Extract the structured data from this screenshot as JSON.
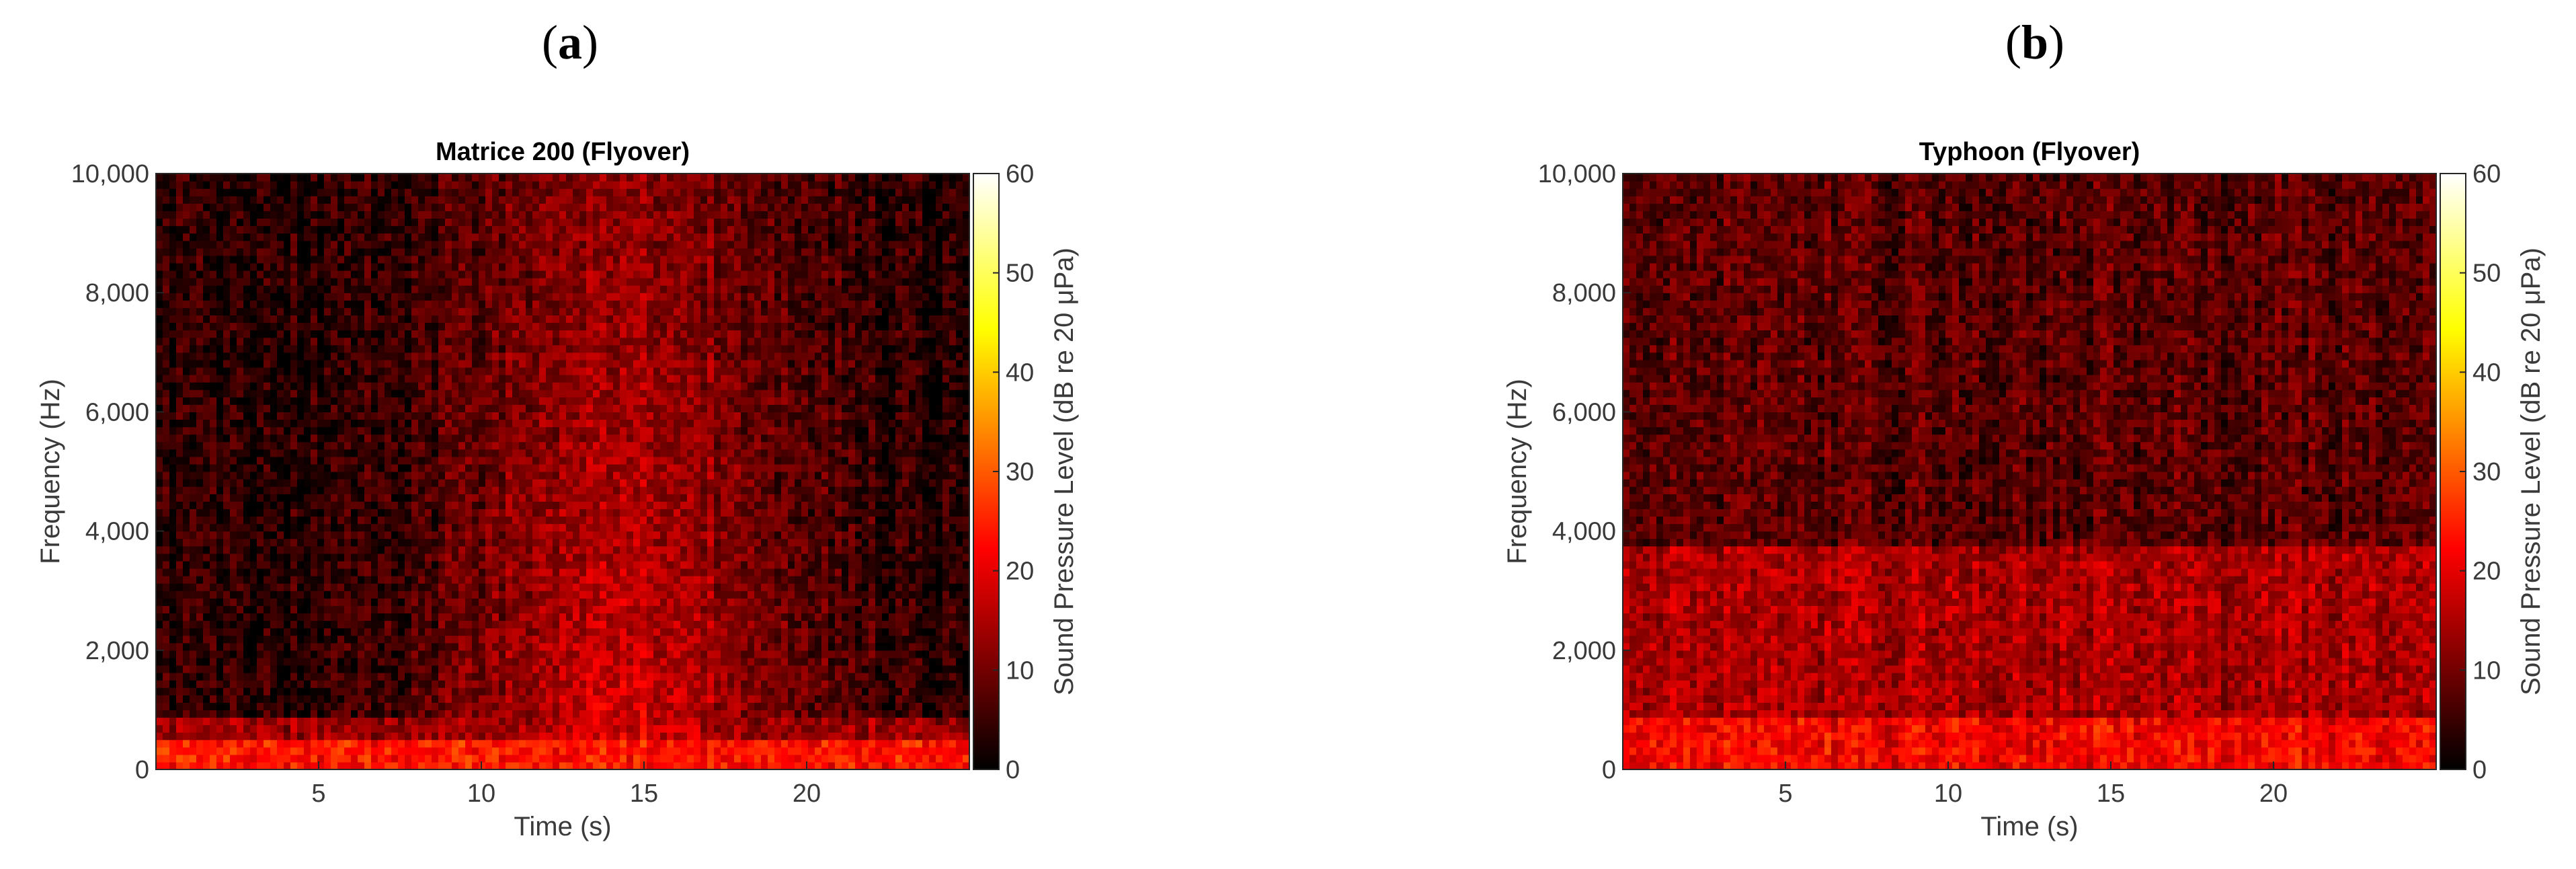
{
  "panels": [
    {
      "label_open": "(",
      "label_letter": "a",
      "label_close": ")"
    },
    {
      "label_open": "(",
      "label_letter": "b",
      "label_close": ")"
    }
  ],
  "chart_data": [
    {
      "type": "heatmap",
      "title": "Matrice 200 (Flyover)",
      "xlabel": "Time (s)",
      "ylabel": "Frequency (Hz)",
      "colorbar_label": "Sound Pressure Level (dB re 20 μPa)",
      "xlim": [
        0,
        25
      ],
      "ylim": [
        0,
        10000
      ],
      "clim": [
        0,
        60
      ],
      "xticks": [
        5,
        10,
        15,
        20
      ],
      "xtick_labels": [
        "5",
        "10",
        "15",
        "20"
      ],
      "yticks": [
        0,
        2000,
        4000,
        6000,
        8000,
        10000
      ],
      "ytick_labels": [
        "0",
        "2,000",
        "4,000",
        "6,000",
        "8,000",
        "10,000"
      ],
      "cticks": [
        0,
        10,
        20,
        30,
        40,
        50,
        60
      ],
      "ctick_labels": [
        "0",
        "10",
        "20",
        "30",
        "40",
        "50",
        "60"
      ],
      "colormap": "hot",
      "features": [
        {
          "kind": "time_band",
          "t_center": 14.5,
          "t_width": 5.5,
          "level_db": 17,
          "f_decay_hz": 6000
        },
        {
          "kind": "freq_band",
          "f_min": 0,
          "f_max": 500,
          "level_db": 24
        },
        {
          "kind": "freq_band",
          "f_min": 500,
          "f_max": 900,
          "level_db": 13
        }
      ]
    },
    {
      "type": "heatmap",
      "title": "Typhoon (Flyover)",
      "xlabel": "Time (s)",
      "ylabel": "Frequency (Hz)",
      "colorbar_label": "Sound Pressure Level (dB re 20 μPa)",
      "xlim": [
        0,
        25
      ],
      "ylim": [
        0,
        10000
      ],
      "clim": [
        0,
        60
      ],
      "xticks": [
        5,
        10,
        15,
        20
      ],
      "xtick_labels": [
        "5",
        "10",
        "15",
        "20"
      ],
      "yticks": [
        0,
        2000,
        4000,
        6000,
        8000,
        10000
      ],
      "ytick_labels": [
        "0",
        "2,000",
        "4,000",
        "6,000",
        "8,000",
        "10,000"
      ],
      "cticks": [
        0,
        10,
        20,
        30,
        40,
        50,
        60
      ],
      "ctick_labels": [
        "0",
        "10",
        "20",
        "30",
        "40",
        "50",
        "60"
      ],
      "colormap": "hot",
      "features": [
        {
          "kind": "freq_band",
          "f_min": 0,
          "f_max": 900,
          "level_db": 22
        },
        {
          "kind": "freq_band",
          "f_min": 900,
          "f_max": 3800,
          "level_db": 15
        },
        {
          "kind": "freq_band",
          "f_min": 3800,
          "f_max": 10000,
          "level_db": 8
        },
        {
          "kind": "time_band",
          "t_center": 5.8,
          "t_width": 1.2,
          "level_db": 6,
          "f_decay_hz": 4000
        }
      ]
    }
  ]
}
